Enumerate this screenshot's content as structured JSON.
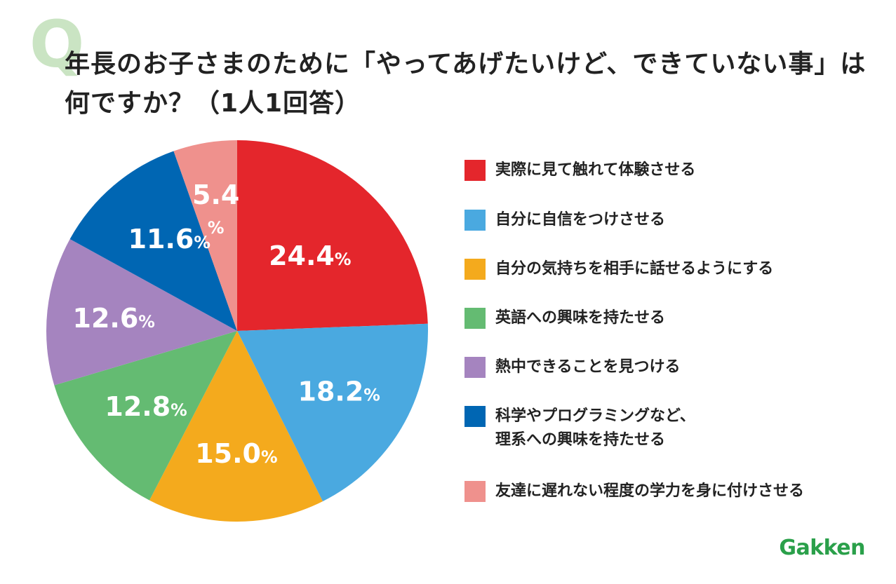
{
  "title": {
    "q_mark": "Q",
    "line1": "年長のお子さまのために「やってあげたいけど、できていない事」は",
    "line2": "何ですか？（1人1回答）"
  },
  "brand": "Gakken",
  "colors": {
    "q_mark": "#b9dcb0",
    "brand": "#2aa04a",
    "text": "#222222"
  },
  "chart_data": {
    "type": "pie",
    "unit": "%",
    "start": "12 o'clock, clockwise",
    "slices": [
      {
        "label": "実際に見て触れて体験させる",
        "lines": [
          "実際に見て触れて体験させる"
        ],
        "value": 24.4,
        "display": "24.4",
        "color": "#e4262c"
      },
      {
        "label": "自分に自信をつけさせる",
        "lines": [
          "自分に自信をつけさせる"
        ],
        "value": 18.2,
        "display": "18.2",
        "color": "#4aa9e0"
      },
      {
        "label": "自分の気持ちを相手に話せるようにする",
        "lines": [
          "自分の気持ちを相手に話せるようにする"
        ],
        "value": 15.0,
        "display": "15.0",
        "color": "#f4aa1d"
      },
      {
        "label": "英語への興味を持たせる",
        "lines": [
          "英語への興味を持たせる"
        ],
        "value": 12.8,
        "display": "12.8",
        "color": "#64bb72"
      },
      {
        "label": "熱中できることを見つける",
        "lines": [
          "熱中できることを見つける"
        ],
        "value": 12.6,
        "display": "12.6",
        "color": "#a584bf"
      },
      {
        "label": "科学やプログラミングなど、理系への興味を持たせる",
        "lines": [
          "科学やプログラミングなど、",
          "理系への興味を持たせる"
        ],
        "value": 11.6,
        "display": "11.6",
        "color": "#0066b3"
      },
      {
        "label": "友達に遅れない程度の学力を身に付けさせる",
        "lines": [
          "友達に遅れない程度の学力を身に付けさせる"
        ],
        "value": 5.4,
        "display": "5.4",
        "color": "#ef918d"
      }
    ]
  }
}
